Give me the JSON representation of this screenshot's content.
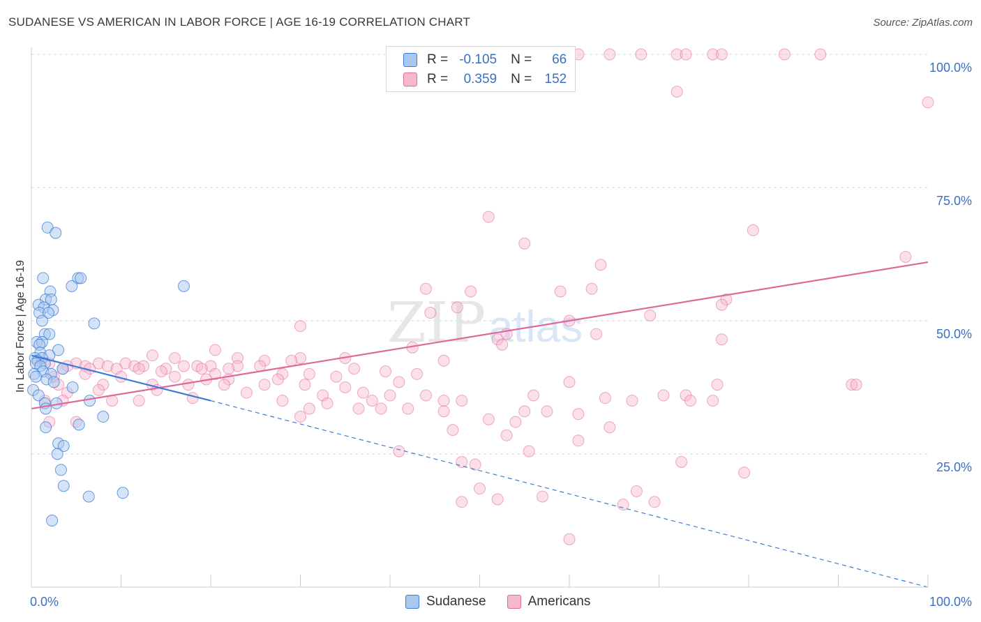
{
  "title": "SUDANESE VS AMERICAN IN LABOR FORCE | AGE 16-19 CORRELATION CHART",
  "source": "Source: ZipAtlas.com",
  "colors": {
    "blue": "#3a7bd5",
    "blue_fill": "#a9c8f0",
    "pink": "#e0679a",
    "pink_fill": "#f6b8cf",
    "grid": "#d9d9d9",
    "tick_text": "#3b6fc4"
  },
  "legend": {
    "rows": [
      {
        "r_label": "R =",
        "r_value": "-0.105",
        "n_label": "N =",
        "n_value": "66"
      },
      {
        "r_label": "R =",
        "r_value": "0.359",
        "n_label": "N =",
        "n_value": "152"
      }
    ]
  },
  "chart_data": {
    "type": "scatter",
    "title": "SUDANESE VS AMERICAN IN LABOR FORCE | AGE 16-19 CORRELATION CHART",
    "xlabel": "",
    "ylabel": "In Labor Force | Age 16-19",
    "xlim": [
      0,
      100
    ],
    "ylim": [
      0,
      100
    ],
    "x_tick_labels": [
      "0.0%",
      "100.0%"
    ],
    "y_tick_labels": [
      "25.0%",
      "50.0%",
      "75.0%",
      "100.0%"
    ],
    "y_ticks": [
      25,
      50,
      75,
      100
    ],
    "legend_position": "top-center",
    "watermark": "ZIPatlas",
    "series": [
      {
        "name": "Sudanese",
        "R": -0.105,
        "N": 66,
        "trend": {
          "x": [
            0,
            20
          ],
          "y": [
            43.5,
            35.0
          ],
          "dashed_extension_to": [
            100,
            0
          ]
        },
        "points": [
          [
            1.8,
            67.5
          ],
          [
            2.7,
            66.5
          ],
          [
            5.2,
            58
          ],
          [
            5.5,
            58
          ],
          [
            1.3,
            58
          ],
          [
            4.5,
            56.5
          ],
          [
            17,
            56.5
          ],
          [
            2.1,
            55.5
          ],
          [
            1.6,
            54
          ],
          [
            2.2,
            54
          ],
          [
            0.8,
            53
          ],
          [
            1.4,
            52.5
          ],
          [
            2.4,
            52
          ],
          [
            0.9,
            51.5
          ],
          [
            1.9,
            51.5
          ],
          [
            1.2,
            50
          ],
          [
            7,
            49.5
          ],
          [
            1.5,
            47.5
          ],
          [
            2,
            47.5
          ],
          [
            0.6,
            46
          ],
          [
            1.2,
            46
          ],
          [
            0.9,
            45.5
          ],
          [
            3,
            44.5
          ],
          [
            1,
            44
          ],
          [
            2,
            43.5
          ],
          [
            0.4,
            43
          ],
          [
            1.2,
            43
          ],
          [
            0.7,
            42.5
          ],
          [
            1.5,
            42
          ],
          [
            0.5,
            42
          ],
          [
            1,
            41.5
          ],
          [
            3.5,
            41
          ],
          [
            1.3,
            40.5
          ],
          [
            0.3,
            40
          ],
          [
            2.2,
            40
          ],
          [
            0.5,
            39.5
          ],
          [
            1.7,
            39
          ],
          [
            2.5,
            38.5
          ],
          [
            4.6,
            37.5
          ],
          [
            0.2,
            37
          ],
          [
            0.8,
            36
          ],
          [
            1.5,
            34.5
          ],
          [
            2.8,
            34.5
          ],
          [
            6.5,
            35
          ],
          [
            1.6,
            33.5
          ],
          [
            8,
            32
          ],
          [
            5.3,
            30.5
          ],
          [
            1.6,
            30
          ],
          [
            3,
            27
          ],
          [
            3.6,
            26.5
          ],
          [
            2.9,
            25
          ],
          [
            3.3,
            22
          ],
          [
            3.6,
            19
          ],
          [
            6.4,
            17
          ],
          [
            10.2,
            17.7
          ],
          [
            2.3,
            12.5
          ]
        ]
      },
      {
        "name": "Americans",
        "R": 0.359,
        "N": 152,
        "trend": {
          "x": [
            0,
            100
          ],
          "y": [
            33.5,
            61.0
          ]
        },
        "points": [
          [
            61,
            100
          ],
          [
            64.5,
            100
          ],
          [
            68,
            100
          ],
          [
            72,
            100
          ],
          [
            73,
            100
          ],
          [
            76,
            100
          ],
          [
            77,
            100
          ],
          [
            84,
            100
          ],
          [
            88,
            100
          ],
          [
            72,
            93
          ],
          [
            100,
            91
          ],
          [
            51,
            69.5
          ],
          [
            80.5,
            67
          ],
          [
            55,
            64.5
          ],
          [
            97.5,
            62
          ],
          [
            63.5,
            60.5
          ],
          [
            62.5,
            56
          ],
          [
            44,
            56
          ],
          [
            59,
            55.5
          ],
          [
            49,
            55.5
          ],
          [
            77.5,
            54
          ],
          [
            77,
            53
          ],
          [
            47.5,
            52.5
          ],
          [
            44.5,
            51.5
          ],
          [
            69,
            51
          ],
          [
            60,
            50
          ],
          [
            30,
            49
          ],
          [
            53,
            47.5
          ],
          [
            63,
            47.5
          ],
          [
            52,
            46.5
          ],
          [
            77,
            46.5
          ],
          [
            52.5,
            45.5
          ],
          [
            42.5,
            45
          ],
          [
            20.5,
            44.5
          ],
          [
            13.5,
            43.5
          ],
          [
            16,
            43
          ],
          [
            23,
            43
          ],
          [
            30,
            43
          ],
          [
            35,
            43
          ],
          [
            26,
            42.5
          ],
          [
            29,
            42.5
          ],
          [
            46,
            42.5
          ],
          [
            2,
            42
          ],
          [
            5,
            42
          ],
          [
            7.5,
            42
          ],
          [
            10.5,
            42
          ],
          [
            4,
            41.5
          ],
          [
            6,
            41.5
          ],
          [
            8.5,
            41.5
          ],
          [
            11.5,
            41.5
          ],
          [
            12.5,
            41.5
          ],
          [
            17,
            41.5
          ],
          [
            18.5,
            41.5
          ],
          [
            20,
            41.5
          ],
          [
            23,
            41.5
          ],
          [
            25.5,
            41.5
          ],
          [
            3.5,
            41
          ],
          [
            6.5,
            41
          ],
          [
            9.5,
            41
          ],
          [
            12,
            41
          ],
          [
            15,
            41
          ],
          [
            19,
            41
          ],
          [
            22,
            41
          ],
          [
            14.5,
            40.5
          ],
          [
            20.5,
            40
          ],
          [
            28,
            40
          ],
          [
            31,
            40
          ],
          [
            2.5,
            39.5
          ],
          [
            6,
            40
          ],
          [
            10,
            39.5
          ],
          [
            16,
            39.5
          ],
          [
            19.5,
            39
          ],
          [
            22,
            39
          ],
          [
            27.5,
            39
          ],
          [
            34,
            39.5
          ],
          [
            43,
            40
          ],
          [
            36,
            41
          ],
          [
            39.5,
            40.5
          ],
          [
            3,
            38
          ],
          [
            8,
            38
          ],
          [
            13.5,
            38
          ],
          [
            17.5,
            38
          ],
          [
            21.5,
            38
          ],
          [
            26,
            38
          ],
          [
            30.5,
            38
          ],
          [
            35,
            37.5
          ],
          [
            41,
            38.5
          ],
          [
            60,
            38.5
          ],
          [
            76.5,
            38
          ],
          [
            91.5,
            38
          ],
          [
            92,
            38
          ],
          [
            4,
            36.5
          ],
          [
            7.5,
            37
          ],
          [
            14,
            37
          ],
          [
            24,
            36.5
          ],
          [
            32.5,
            36
          ],
          [
            37,
            36.5
          ],
          [
            40,
            36
          ],
          [
            44,
            36
          ],
          [
            56,
            36
          ],
          [
            70.5,
            36
          ],
          [
            73,
            36
          ],
          [
            1.5,
            35
          ],
          [
            3.5,
            35
          ],
          [
            9,
            35
          ],
          [
            12,
            35
          ],
          [
            18,
            35.5
          ],
          [
            28,
            35
          ],
          [
            33,
            34.5
          ],
          [
            38,
            35
          ],
          [
            46,
            35
          ],
          [
            48,
            35
          ],
          [
            64,
            35.5
          ],
          [
            67,
            35
          ],
          [
            73.5,
            35
          ],
          [
            76,
            35
          ],
          [
            31,
            33.5
          ],
          [
            36.5,
            33.5
          ],
          [
            39,
            33.5
          ],
          [
            42,
            33.5
          ],
          [
            46,
            33
          ],
          [
            55,
            33
          ],
          [
            57.5,
            33
          ],
          [
            61,
            32.5
          ],
          [
            2,
            31
          ],
          [
            5,
            31
          ],
          [
            30,
            32
          ],
          [
            51,
            31.5
          ],
          [
            54,
            31
          ],
          [
            64.5,
            30
          ],
          [
            47,
            29.5
          ],
          [
            53,
            28.5
          ],
          [
            61,
            27.5
          ],
          [
            41,
            25.5
          ],
          [
            55.5,
            25.5
          ],
          [
            48,
            23.5
          ],
          [
            49.5,
            23
          ],
          [
            72.5,
            23.5
          ],
          [
            79.5,
            21.5
          ],
          [
            50,
            18.5
          ],
          [
            57,
            17
          ],
          [
            67.5,
            18
          ],
          [
            52,
            16.5
          ],
          [
            48,
            16
          ],
          [
            66,
            15.5
          ],
          [
            69.5,
            16
          ],
          [
            60,
            9
          ]
        ]
      }
    ]
  },
  "bottom_legend": [
    {
      "label": "Sudanese"
    },
    {
      "label": "Americans"
    }
  ]
}
